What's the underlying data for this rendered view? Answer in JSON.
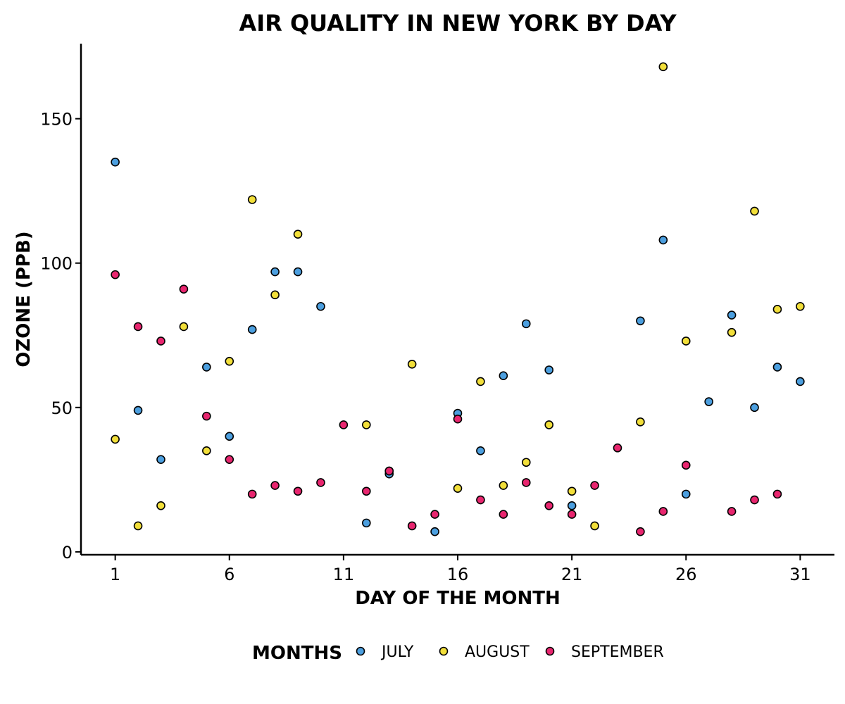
{
  "chart_data": {
    "type": "scatter",
    "title": "AIR QUALITY IN NEW YORK BY DAY",
    "xlabel": "DAY OF THE MONTH",
    "ylabel": "OZONE (PPB)",
    "xlim": [
      -0.5,
      32.5
    ],
    "ylim": [
      -1,
      176
    ],
    "xticks": [
      1,
      6,
      11,
      16,
      21,
      26,
      31
    ],
    "yticks": [
      0,
      50,
      100,
      150
    ],
    "grid": false,
    "legend": {
      "title": "MONTHS",
      "placement": "bottom"
    },
    "series": [
      {
        "name": "JULY",
        "color": "#4c9fdf",
        "x": [
          1,
          2,
          3,
          5,
          6,
          7,
          8,
          9,
          10,
          12,
          13,
          15,
          16,
          17,
          18,
          19,
          20,
          21,
          24,
          25,
          26,
          27,
          28,
          29,
          30,
          31
        ],
        "y": [
          135,
          49,
          32,
          64,
          40,
          77,
          97,
          97,
          85,
          10,
          27,
          7,
          48,
          35,
          61,
          79,
          63,
          16,
          80,
          108,
          20,
          52,
          82,
          50,
          64,
          59
        ]
      },
      {
        "name": "AUGUST",
        "color": "#f2df3a",
        "x": [
          1,
          2,
          3,
          4,
          5,
          6,
          7,
          8,
          9,
          12,
          13,
          14,
          16,
          17,
          18,
          19,
          20,
          21,
          22,
          24,
          25,
          26,
          28,
          29,
          30,
          31
        ],
        "y": [
          39,
          9,
          16,
          78,
          35,
          66,
          122,
          89,
          110,
          44,
          28,
          65,
          22,
          59,
          23,
          31,
          44,
          21,
          9,
          45,
          168,
          73,
          76,
          118,
          84,
          85
        ]
      },
      {
        "name": "SEPTEMBER",
        "color": "#e8266f",
        "x": [
          1,
          2,
          3,
          4,
          5,
          6,
          7,
          8,
          9,
          10,
          11,
          12,
          13,
          14,
          15,
          16,
          17,
          18,
          19,
          20,
          21,
          22,
          23,
          24,
          25,
          26,
          28,
          29,
          30
        ],
        "y": [
          96,
          78,
          73,
          91,
          47,
          32,
          20,
          23,
          21,
          24,
          44,
          21,
          28,
          9,
          13,
          46,
          18,
          13,
          24,
          16,
          13,
          23,
          36,
          7,
          14,
          30,
          14,
          18,
          20
        ]
      }
    ]
  }
}
